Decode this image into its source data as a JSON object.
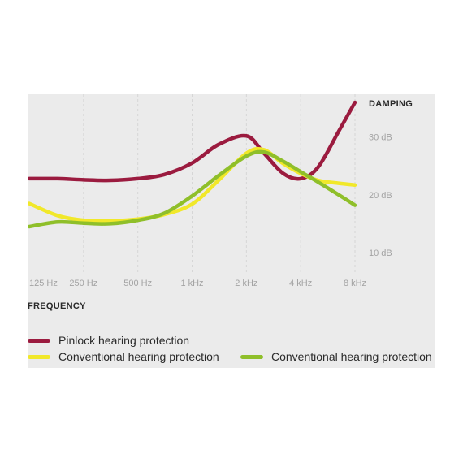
{
  "chart_data": {
    "type": "line",
    "x_scale": "log",
    "x_ticks": [
      "125 Hz",
      "250 Hz",
      "500 Hz",
      "1 kHz",
      "2 kHz",
      "4 kHz",
      "8 kHz"
    ],
    "x_tick_values": [
      125,
      250,
      500,
      1000,
      2000,
      4000,
      8000
    ],
    "y_ticks": [
      "10 dB",
      "20 dB",
      "30 dB"
    ],
    "y_tick_values": [
      10,
      20,
      30
    ],
    "xlabel": "FREQUENCY",
    "ylabel": "DAMPING",
    "ylim": [
      5.5,
      36
    ],
    "grid": "vertical dashed",
    "legend_position": "bottom",
    "series": [
      {
        "name": "Pinlock hearing protection",
        "color": "#9b1b3f",
        "x": [
          125,
          180,
          250,
          350,
          500,
          700,
          1000,
          1400,
          2000,
          2500,
          3200,
          4000,
          5000,
          6500,
          8000
        ],
        "y": [
          22.8,
          22.8,
          22.6,
          22.5,
          22.8,
          23.5,
          25.5,
          28.7,
          30.2,
          27.2,
          23.7,
          22.8,
          24.8,
          31.0,
          36.0
        ]
      },
      {
        "name": "Conventional hearing protection",
        "color": "#f1e82a",
        "x": [
          125,
          180,
          250,
          350,
          500,
          700,
          1000,
          1400,
          2000,
          2500,
          3200,
          4000,
          5000,
          6500,
          8000
        ],
        "y": [
          18.5,
          16.4,
          15.6,
          15.5,
          15.8,
          16.6,
          18.4,
          22.5,
          27.2,
          27.8,
          25.4,
          23.7,
          22.5,
          22.0,
          21.7
        ]
      },
      {
        "name": "Conventional hearing protection",
        "color": "#8fbf2a",
        "x": [
          125,
          180,
          250,
          350,
          500,
          700,
          1000,
          1400,
          2000,
          2500,
          3200,
          4000,
          5000,
          6500,
          8000
        ],
        "y": [
          14.5,
          15.3,
          15.1,
          15.0,
          15.6,
          16.8,
          19.8,
          23.3,
          26.7,
          27.4,
          25.8,
          24.0,
          22.2,
          20.0,
          18.2
        ]
      }
    ]
  }
}
